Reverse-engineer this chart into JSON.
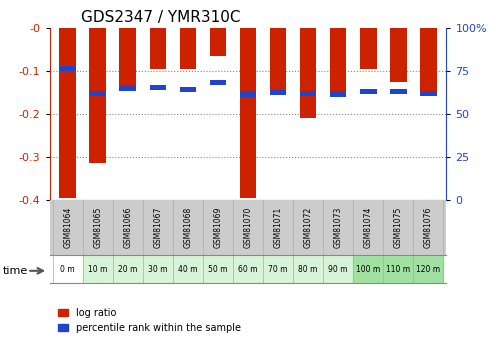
{
  "title": "GDS2347 / YMR310C",
  "samples": [
    "GSM81064",
    "GSM81065",
    "GSM81066",
    "GSM81067",
    "GSM81068",
    "GSM81069",
    "GSM81070",
    "GSM81071",
    "GSM81072",
    "GSM81073",
    "GSM81074",
    "GSM81075",
    "GSM81076"
  ],
  "time_labels": [
    "0 m",
    "10 m",
    "20 m",
    "30 m",
    "40 m",
    "50 m",
    "60 m",
    "70 m",
    "80 m",
    "90 m",
    "100 m",
    "110 m",
    "120 m"
  ],
  "log_ratio": [
    -0.395,
    -0.315,
    -0.135,
    -0.095,
    -0.095,
    -0.065,
    -0.395,
    -0.15,
    -0.21,
    -0.15,
    -0.095,
    -0.125,
    -0.155
  ],
  "percentile_rank": [
    0.22,
    0.365,
    0.335,
    0.33,
    0.345,
    0.305,
    0.37,
    0.36,
    0.365,
    0.37,
    0.355,
    0.355,
    0.365
  ],
  "bar_color": "#cc2200",
  "pct_color": "#2244cc",
  "ylim_left": [
    -0.4,
    0.0
  ],
  "ylim_right": [
    0,
    100
  ],
  "y_ticks_left": [
    -0.4,
    -0.3,
    -0.2,
    -0.1,
    0.0
  ],
  "y_ticks_right": [
    0,
    25,
    50,
    75,
    100
  ],
  "grid_color": "#888888",
  "bg_color_plot": "#ffffff",
  "bg_color_fig": "#ffffff",
  "tick_label_color_left": "#cc2200",
  "tick_label_color_right": "#2244cc",
  "sample_bg_color": "#cccccc",
  "legend_log_ratio": "log ratio",
  "legend_pct": "percentile rank within the sample",
  "bar_width": 0.55,
  "pct_bar_height": 0.012
}
